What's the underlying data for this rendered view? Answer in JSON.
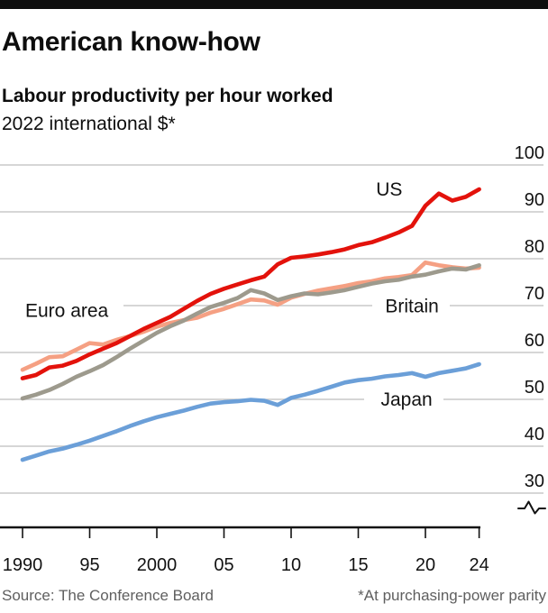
{
  "header": {
    "title": "American know-how",
    "subtitle": "Labour productivity per hour worked",
    "unit_line": "2022 international $*"
  },
  "footer": {
    "source": "Source: The Conference Board",
    "footnote": "*At purchasing-power parity"
  },
  "colors": {
    "top_rule": "#0e0e0e",
    "us_red": "#e3120b",
    "euro_salmon": "#f5a083",
    "britain_grey": "#9d9a8d",
    "japan_blue": "#6b9fd8"
  },
  "chart_data": {
    "type": "line",
    "title": "American know-how",
    "subtitle": "Labour productivity per hour worked",
    "unit": "2022 international $*",
    "xlabel": "",
    "ylabel": "",
    "grid": true,
    "legend": "inline-labels",
    "axis_break_bottom": true,
    "ylim": [
      27,
      103
    ],
    "xlim": [
      1990,
      2024
    ],
    "y_ticks": [
      100,
      90,
      80,
      70,
      60,
      50,
      40,
      30
    ],
    "x_ticks": [
      {
        "year": 1990,
        "label": "1990"
      },
      {
        "year": 1995,
        "label": "95"
      },
      {
        "year": 2000,
        "label": "2000"
      },
      {
        "year": 2005,
        "label": "05"
      },
      {
        "year": 2010,
        "label": "10"
      },
      {
        "year": 2015,
        "label": "15"
      },
      {
        "year": 2020,
        "label": "20"
      },
      {
        "year": 2024,
        "label": "24"
      }
    ],
    "x": [
      1990,
      1991,
      1992,
      1993,
      1994,
      1995,
      1996,
      1997,
      1998,
      1999,
      2000,
      2001,
      2002,
      2003,
      2004,
      2005,
      2006,
      2007,
      2008,
      2009,
      2010,
      2011,
      2012,
      2013,
      2014,
      2015,
      2016,
      2017,
      2018,
      2019,
      2020,
      2021,
      2022,
      2023,
      2024
    ],
    "series": [
      {
        "name": "Euro area",
        "color": "#f5a083",
        "values": [
          56.3,
          57.6,
          59.0,
          59.2,
          60.6,
          62.0,
          61.7,
          62.7,
          63.5,
          64.4,
          65.5,
          66.3,
          66.9,
          67.4,
          68.5,
          69.3,
          70.3,
          71.3,
          71.1,
          70.2,
          71.7,
          72.5,
          73.2,
          73.7,
          74.2,
          74.8,
          75.2,
          75.8,
          76.1,
          76.5,
          79.2,
          78.6,
          78.2,
          77.9,
          78.1
        ]
      },
      {
        "name": "Britain",
        "color": "#9d9a8d",
        "values": [
          50.2,
          51.0,
          52.0,
          53.3,
          54.8,
          56.0,
          57.3,
          59.0,
          60.8,
          62.5,
          64.2,
          65.6,
          66.8,
          68.3,
          69.7,
          70.6,
          71.6,
          73.3,
          72.6,
          71.2,
          72.0,
          72.6,
          72.4,
          72.8,
          73.3,
          74.0,
          74.7,
          75.2,
          75.5,
          76.2,
          76.6,
          77.3,
          77.9,
          77.7,
          78.6
        ]
      },
      {
        "name": "Japan",
        "color": "#6b9fd8",
        "values": [
          37.1,
          38.0,
          38.9,
          39.5,
          40.3,
          41.2,
          42.2,
          43.2,
          44.3,
          45.3,
          46.2,
          46.9,
          47.6,
          48.4,
          49.1,
          49.4,
          49.6,
          49.9,
          49.7,
          48.8,
          50.3,
          51.0,
          51.8,
          52.7,
          53.6,
          54.1,
          54.4,
          54.9,
          55.2,
          55.6,
          54.8,
          55.6,
          56.1,
          56.6,
          57.5
        ]
      },
      {
        "name": "US",
        "color": "#e3120b",
        "values": [
          54.5,
          55.2,
          56.8,
          57.2,
          58.2,
          59.6,
          60.8,
          62.0,
          63.5,
          65.0,
          66.3,
          67.6,
          69.3,
          71.0,
          72.5,
          73.6,
          74.5,
          75.4,
          76.2,
          78.8,
          80.2,
          80.5,
          80.9,
          81.4,
          82.0,
          82.9,
          83.5,
          84.5,
          85.6,
          87.0,
          91.3,
          93.9,
          92.4,
          93.2,
          94.8
        ]
      }
    ],
    "annotations": [
      {
        "text": "US",
        "year": 2017.3,
        "value": 93.5,
        "anchor": "middle"
      },
      {
        "text": "Euro area",
        "year": 1990.2,
        "value": 67.6,
        "anchor": "start"
      },
      {
        "text": "Britain",
        "year": 2019.0,
        "value": 68.6,
        "anchor": "middle"
      },
      {
        "text": "Japan",
        "year": 2018.6,
        "value": 48.7,
        "anchor": "middle"
      }
    ],
    "colors": {
      "grid": "#c8c8c8",
      "axis": "#121212",
      "text": "#121212"
    }
  }
}
